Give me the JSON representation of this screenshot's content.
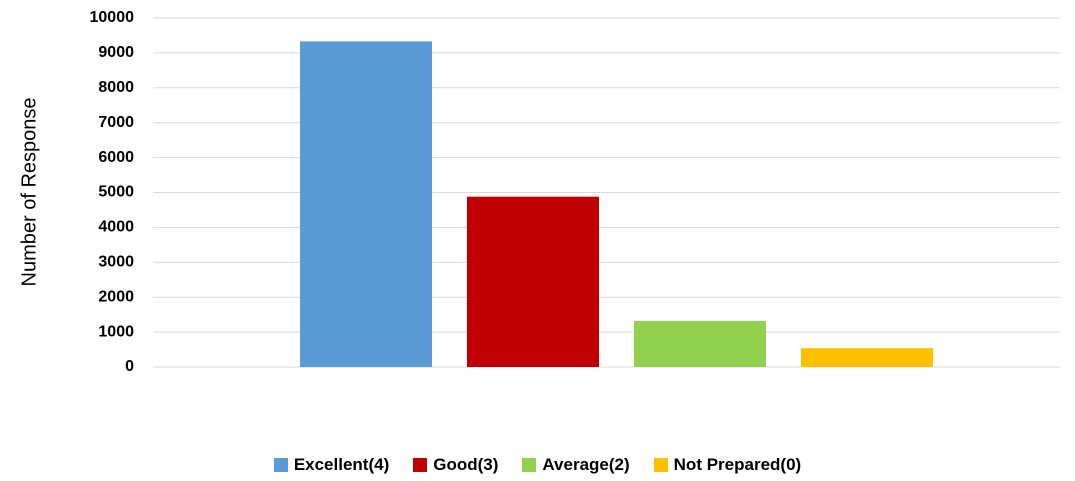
{
  "chart_data": {
    "type": "bar",
    "title": "",
    "xlabel": "",
    "ylabel": "Number of Response",
    "ylim": [
      0,
      10000
    ],
    "yticks": [
      0,
      1000,
      2000,
      3000,
      4000,
      5000,
      6000,
      7000,
      8000,
      9000,
      10000
    ],
    "grid": true,
    "legend_position": "bottom",
    "series": [
      {
        "name": "Excellent(4)",
        "value": 9330,
        "color": "#5B9BD5"
      },
      {
        "name": "Good(3)",
        "value": 4880,
        "color": "#C00000"
      },
      {
        "name": "Average(2)",
        "value": 1320,
        "color": "#92D050"
      },
      {
        "name": "Not Prepared(0)",
        "value": 540,
        "color": "#FFC000"
      }
    ]
  }
}
